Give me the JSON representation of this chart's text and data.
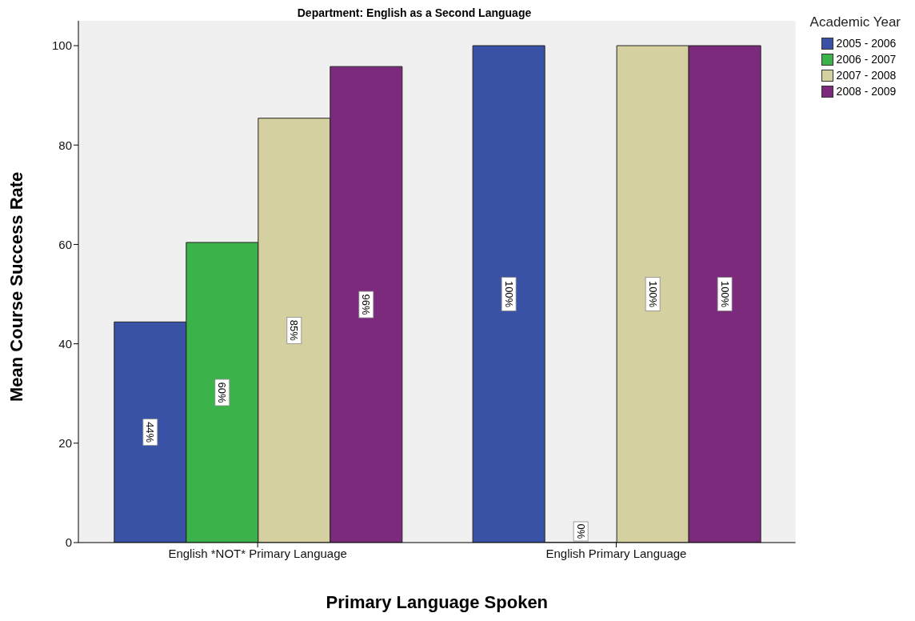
{
  "chart_data": {
    "type": "bar",
    "title": "Department: English as a Second Language",
    "xlabel": "Primary Language Spoken",
    "ylabel": "Mean Course Success Rate",
    "legend_title": "Academic Year",
    "legend": "right",
    "grid": false,
    "categories": [
      "English *NOT* Primary Language",
      "English Primary Language"
    ],
    "series": [
      {
        "name": "2005 - 2006",
        "color": "#3a52a6",
        "values": [
          44.4,
          100
        ],
        "value_labels": [
          "44%",
          "100%"
        ]
      },
      {
        "name": "2006 - 2007",
        "color": "#3cb34a",
        "values": [
          60.4,
          0
        ],
        "value_labels": [
          "60%",
          "0%"
        ]
      },
      {
        "name": "2007 - 2008",
        "color": "#d5d0a0",
        "values": [
          85.4,
          100
        ],
        "value_labels": [
          "85%",
          "100%"
        ]
      },
      {
        "name": "2008 - 2009",
        "color": "#7c2a7c",
        "values": [
          95.8,
          100
        ],
        "value_labels": [
          "96%",
          "100%"
        ]
      }
    ],
    "ylim": [
      0,
      105
    ],
    "yticks": [
      0,
      20,
      40,
      60,
      80,
      100
    ]
  }
}
